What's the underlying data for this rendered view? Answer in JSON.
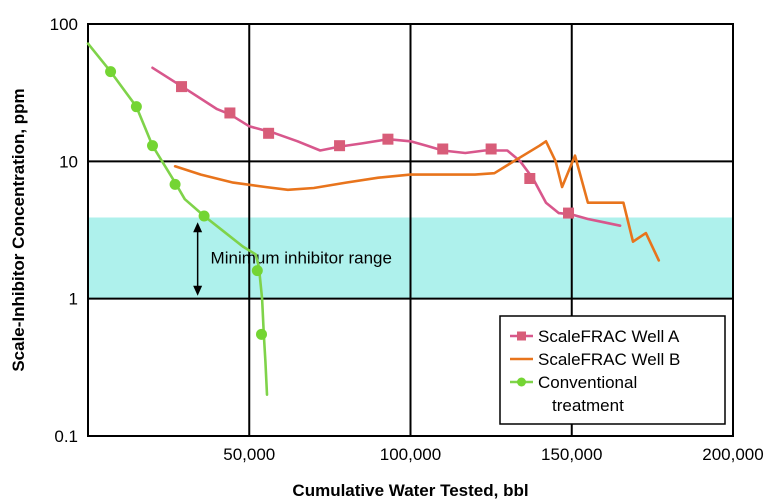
{
  "chart_data": {
    "type": "line",
    "title": "",
    "xlabel": "Cumulative Water Tested, bbl",
    "ylabel": "Scale-Inhibitor Concentration, ppm",
    "xscale": "linear",
    "yscale": "log",
    "xlim": [
      0,
      200000
    ],
    "ylim": [
      0.1,
      100
    ],
    "grid": true,
    "x_ticks": [
      50000,
      100000,
      150000,
      200000
    ],
    "x_tick_labels": [
      "50,000",
      "100,000",
      "150,000",
      "200,000"
    ],
    "y_ticks": [
      0.1,
      1,
      10,
      100
    ],
    "y_tick_labels": [
      "0.1",
      "1",
      "10",
      "100"
    ],
    "legend": {
      "position": "bottom-right",
      "entries": [
        "ScaleFRAC Well A",
        "ScaleFRAC Well B",
        "Conventional",
        "treatment"
      ]
    },
    "shaded_band": {
      "y_range": [
        1,
        3.9
      ],
      "color": "#aef1ec",
      "label": "Minimum inhibitor range"
    },
    "series": [
      {
        "name": "ScaleFRAC Well A",
        "color": "#d8578c",
        "marker_color": "#d85d79",
        "marker": "square",
        "line_points": [
          [
            20000,
            48
          ],
          [
            30000,
            34
          ],
          [
            40000,
            24
          ],
          [
            44000,
            22
          ],
          [
            50000,
            18
          ],
          [
            58000,
            16
          ],
          [
            65000,
            14
          ],
          [
            72000,
            12
          ],
          [
            78000,
            12.8
          ],
          [
            85000,
            13.5
          ],
          [
            93000,
            14.5
          ],
          [
            100000,
            14
          ],
          [
            105000,
            13
          ],
          [
            110000,
            12
          ],
          [
            117000,
            11.5
          ],
          [
            123000,
            12
          ],
          [
            126000,
            12
          ],
          [
            130000,
            12
          ],
          [
            134000,
            10
          ],
          [
            138000,
            7.5
          ],
          [
            142000,
            5
          ],
          [
            146000,
            4.2
          ],
          [
            150000,
            4.1
          ],
          [
            155000,
            3.8
          ],
          [
            160000,
            3.6
          ],
          [
            165000,
            3.4
          ]
        ],
        "markers": [
          [
            29000,
            35
          ],
          [
            44000,
            22.5
          ],
          [
            56000,
            16
          ],
          [
            78000,
            13
          ],
          [
            93000,
            14.5
          ],
          [
            110000,
            12.3
          ],
          [
            125000,
            12.3
          ],
          [
            137000,
            7.5
          ],
          [
            149000,
            4.2
          ]
        ]
      },
      {
        "name": "ScaleFRAC Well B",
        "color": "#e8741c",
        "marker": "none",
        "line_points": [
          [
            27000,
            9.2
          ],
          [
            35000,
            8
          ],
          [
            45000,
            7
          ],
          [
            55000,
            6.5
          ],
          [
            62000,
            6.2
          ],
          [
            70000,
            6.4
          ],
          [
            80000,
            7
          ],
          [
            90000,
            7.6
          ],
          [
            100000,
            8
          ],
          [
            110000,
            8
          ],
          [
            120000,
            8
          ],
          [
            126000,
            8.2
          ],
          [
            132000,
            10
          ],
          [
            140000,
            13
          ],
          [
            142000,
            14
          ],
          [
            145000,
            10
          ],
          [
            147000,
            6.5
          ],
          [
            151000,
            11
          ],
          [
            155000,
            5
          ],
          [
            166000,
            5
          ],
          [
            169000,
            2.6
          ],
          [
            173000,
            3
          ],
          [
            177000,
            1.9
          ]
        ]
      },
      {
        "name": "Conventional treatment",
        "color": "#7fd34a",
        "marker_color": "#74d533",
        "marker": "circle",
        "line_points": [
          [
            0,
            72
          ],
          [
            7000,
            45
          ],
          [
            15000,
            25
          ],
          [
            20000,
            13
          ],
          [
            27000,
            7
          ],
          [
            30000,
            5.3
          ],
          [
            36000,
            4
          ],
          [
            42000,
            3.1
          ],
          [
            48000,
            2.4
          ],
          [
            52000,
            2.1
          ],
          [
            53000,
            1.7
          ],
          [
            54000,
            1
          ],
          [
            54500,
            0.55
          ],
          [
            55000,
            0.35
          ],
          [
            55500,
            0.2
          ]
        ],
        "markers": [
          [
            7000,
            45
          ],
          [
            15000,
            25
          ],
          [
            20000,
            13
          ],
          [
            27000,
            6.8
          ],
          [
            36000,
            4
          ],
          [
            52500,
            1.6
          ],
          [
            53800,
            0.55
          ]
        ]
      }
    ]
  }
}
